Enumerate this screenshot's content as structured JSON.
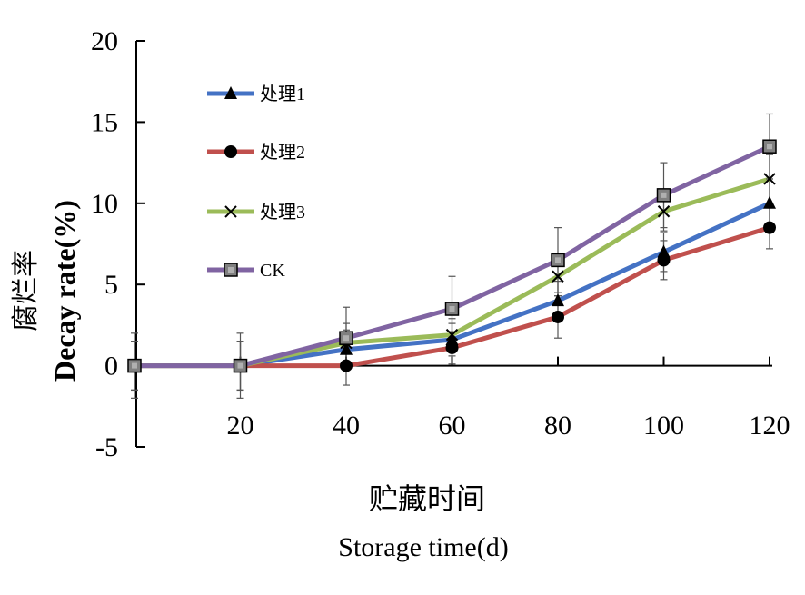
{
  "chart_data": {
    "type": "line",
    "xlabel_cn": "贮藏时间",
    "xlabel_en": "Storage time(d)",
    "ylabel_cn": "腐烂率",
    "ylabel_en": "Decay rate(%)",
    "x": [
      0,
      20,
      40,
      60,
      80,
      100,
      120
    ],
    "x_tick_labels": [
      "20",
      "40",
      "60",
      "80",
      "100",
      "120"
    ],
    "y_tick_labels": [
      "20",
      "15",
      "10",
      "5",
      "0",
      "-5"
    ],
    "ylim": [
      -5,
      20
    ],
    "grid": false,
    "legend_position": "top-left",
    "series": [
      {
        "name": "处理1",
        "color": "#4472C4",
        "marker": "triangle",
        "values": [
          0,
          0,
          1.0,
          1.6,
          4.0,
          7.0,
          10.0
        ],
        "errors": [
          1.5,
          1.5,
          1.2,
          1.0,
          1.2,
          1.2,
          1.5
        ]
      },
      {
        "name": "处理2",
        "color": "#C0504D",
        "marker": "circle",
        "values": [
          0,
          0,
          0,
          1.1,
          3.0,
          6.5,
          8.5
        ],
        "errors": [
          1.5,
          1.5,
          1.2,
          1.0,
          1.3,
          1.2,
          1.3
        ]
      },
      {
        "name": "处理3",
        "color": "#9BBB59",
        "marker": "x",
        "values": [
          0,
          0,
          1.4,
          1.9,
          5.5,
          9.5,
          11.5
        ],
        "errors": [
          1.5,
          1.5,
          1.2,
          1.0,
          1.2,
          1.2,
          1.5
        ]
      },
      {
        "name": "CK",
        "color": "#8064A2",
        "marker": "square",
        "values": [
          0,
          0,
          1.7,
          3.5,
          6.5,
          10.5,
          13.5
        ],
        "errors": [
          2.0,
          2.0,
          1.9,
          2.0,
          2.0,
          2.0,
          2.0
        ]
      }
    ]
  }
}
